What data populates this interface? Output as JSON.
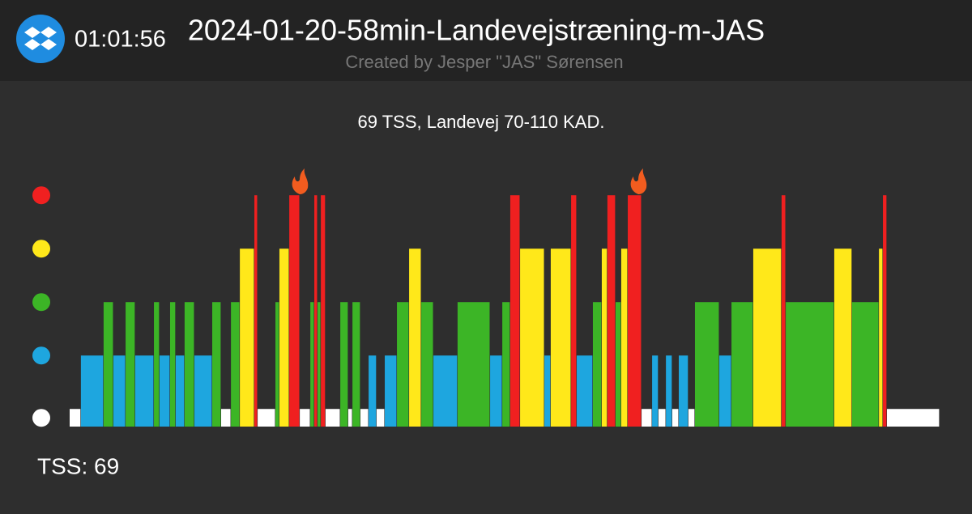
{
  "header": {
    "time": "01:01:56",
    "title": "2024-01-20-58min-Landevejstræning-m-JAS",
    "subtitle": "Created by Jesper \"JAS\" Sørensen"
  },
  "chart_data": {
    "type": "workout",
    "title": "69 TSS, Landevej 70-110 KAD.",
    "x": [
      0,
      48,
      145,
      187,
      239,
      280,
      360,
      384,
      429,
      453,
      491,
      533,
      609,
      647,
      689,
      727,
      789,
      803,
      879,
      896,
      938,
      983,
      1028,
      1045,
      1059,
      1073,
      1093,
      1156,
      1190,
      1208,
      1242,
      1277,
      1311,
      1346,
      1398,
      1450,
      1502,
      1554,
      1657,
      1796,
      1848,
      1882,
      1924,
      2028,
      2055,
      2142,
      2166,
      2235,
      2273,
      2297,
      2332,
      2356,
      2384,
      2443,
      2488,
      2515,
      2547,
      2574,
      2602,
      2643,
      2671,
      2775,
      2827,
      2920,
      3041,
      3059,
      3266,
      3342,
      3457,
      3474,
      3491
    ],
    "values": [
      1,
      2,
      3,
      2,
      3,
      2,
      3,
      2,
      3,
      2,
      3,
      2,
      3,
      1,
      3,
      4,
      5,
      1,
      3,
      4,
      5,
      1,
      3,
      5,
      3,
      5,
      1,
      3,
      1,
      3,
      1,
      2,
      1,
      2,
      3,
      4,
      3,
      2,
      3,
      2,
      3,
      5,
      4,
      2,
      4,
      5,
      2,
      3,
      4,
      5,
      3,
      4,
      5,
      1,
      2,
      1,
      2,
      1,
      2,
      1,
      3,
      2,
      3,
      4,
      5,
      3,
      4,
      3,
      4,
      5,
      1
    ],
    "xlim": [
      0,
      3716
    ],
    "ylim": [
      0.67,
      5
    ],
    "yticks": [
      1,
      2,
      3,
      4,
      5
    ],
    "zone_colors": [
      "#ffffff",
      "#1ea6df",
      "#3cb526",
      "#ffe81a",
      "#f02020"
    ]
  },
  "footer": {
    "tss": "TSS: 69"
  }
}
